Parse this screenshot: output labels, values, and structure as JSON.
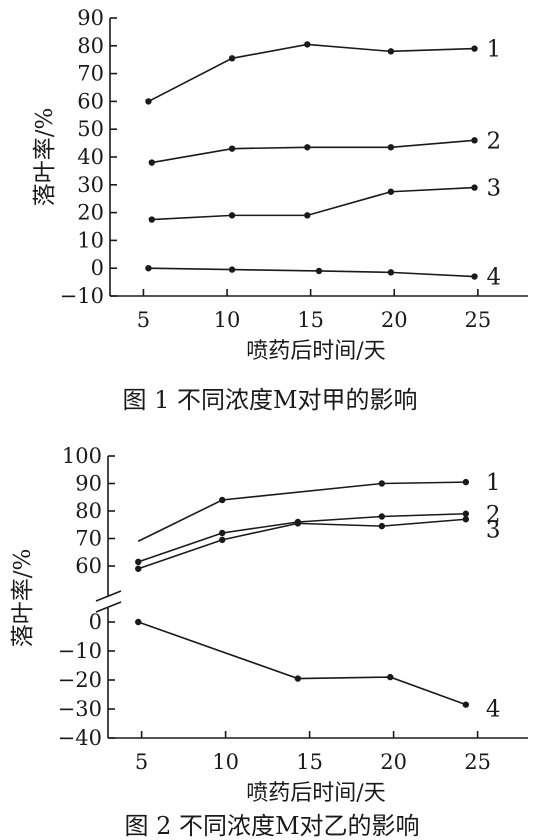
{
  "chart_data": [
    {
      "type": "line",
      "title": "图 1  不同浓度M对甲的影响",
      "xlabel": "喷药后时间/天",
      "ylabel": "落叶率/%",
      "x_ticks": [
        5,
        10,
        15,
        20,
        25
      ],
      "y_ticks": [
        -10,
        0,
        10,
        20,
        30,
        40,
        50,
        60,
        70,
        80,
        90
      ],
      "xlim": [
        3,
        28
      ],
      "ylim": [
        -10,
        90
      ],
      "grid": false,
      "series": [
        {
          "name": "1",
          "x": [
            5.3,
            10.3,
            14.8,
            19.8,
            24.8
          ],
          "y": [
            60,
            75.5,
            80.5,
            78,
            79
          ]
        },
        {
          "name": "2",
          "x": [
            5.5,
            10.3,
            14.8,
            19.8,
            24.8
          ],
          "y": [
            38,
            43,
            43.5,
            43.5,
            46
          ]
        },
        {
          "name": "3",
          "x": [
            5.5,
            10.3,
            14.8,
            19.8,
            24.8
          ],
          "y": [
            17.5,
            19,
            19,
            27.5,
            29
          ]
        },
        {
          "name": "4",
          "x": [
            5.3,
            10.3,
            15.5,
            19.8,
            24.8
          ],
          "y": [
            0,
            -0.5,
            -1,
            -1.5,
            -3
          ]
        }
      ]
    },
    {
      "type": "line",
      "title": "图 2  不同浓度M对乙的影响",
      "xlabel": "喷药后时间/天",
      "ylabel": "落叶率/%",
      "x_ticks": [
        5,
        10,
        15,
        20,
        25
      ],
      "y_ticks_upper": [
        60,
        70,
        80,
        90,
        100
      ],
      "y_ticks_lower": [
        -40,
        -30,
        -20,
        -10,
        0
      ],
      "xlim": [
        3,
        28
      ],
      "axis_break": true,
      "grid": false,
      "series": [
        {
          "name": "1",
          "x": [
            4.8,
            9.8,
            19.3,
            24.3
          ],
          "y": [
            69,
            84,
            90,
            90.5
          ]
        },
        {
          "name": "2",
          "x": [
            4.8,
            9.8,
            14.3,
            19.3,
            24.3
          ],
          "y": [
            61.5,
            72,
            76,
            78,
            79
          ]
        },
        {
          "name": "3",
          "x": [
            4.8,
            9.8,
            14.3,
            19.3,
            24.3
          ],
          "y": [
            59,
            69.5,
            75.5,
            74.5,
            77
          ]
        },
        {
          "name": "4",
          "x": [
            4.8,
            14.3,
            19.8,
            24.3
          ],
          "y": [
            0,
            -19.5,
            -19,
            -28.5
          ]
        }
      ]
    }
  ]
}
